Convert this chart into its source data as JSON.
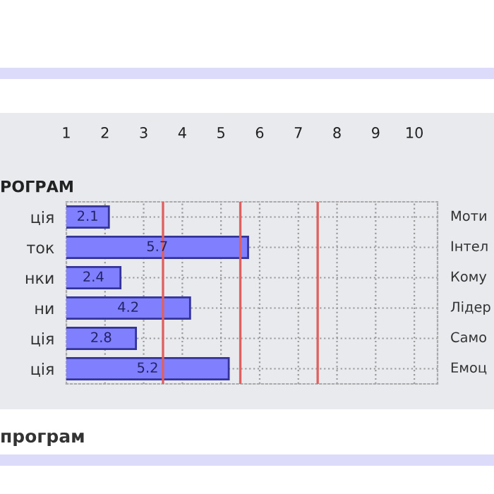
{
  "chart_data": {
    "type": "bar",
    "orientation": "horizontal",
    "title": "РОГРАМ",
    "categories": [
      "ція",
      "ток",
      "нки",
      "ни",
      "ція",
      "ція"
    ],
    "values": [
      2.1,
      5.7,
      2.4,
      4.2,
      2.8,
      5.2
    ],
    "color": "#8080ff",
    "data_labels": true,
    "xlim": [
      1,
      10.6
    ],
    "xticks": [
      1,
      2,
      3,
      4,
      5,
      6,
      7,
      8,
      9,
      10
    ],
    "ref_lines": [
      {
        "axis": "x",
        "value": 3.5,
        "color": "#e06060"
      },
      {
        "axis": "x",
        "value": 5.5,
        "color": "#e06060"
      },
      {
        "axis": "x",
        "value": 7.5,
        "color": "#e06060"
      }
    ],
    "grid": true,
    "annotations": [
      "Моти",
      "Інтел",
      "Кому",
      "Лідер",
      "Само",
      "Емоц",
      "програм"
    ]
  }
}
